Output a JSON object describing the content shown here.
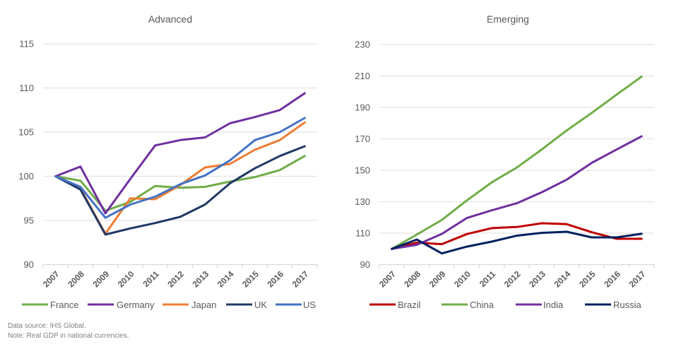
{
  "footnotes": {
    "source": "Data source: IHS Global.",
    "note": "Note: Real GDP in national currencies."
  },
  "chart_data": [
    {
      "type": "line",
      "title": "Advanced",
      "xlabel": "",
      "ylabel": "",
      "categories": [
        "2007",
        "2008",
        "2009",
        "2010",
        "2011",
        "2012",
        "2013",
        "2014",
        "2015",
        "2016",
        "2017"
      ],
      "ylim": [
        90,
        115
      ],
      "yticks": [
        90,
        95,
        100,
        105,
        110,
        115
      ],
      "grid": true,
      "legend": "bottom",
      "series": [
        {
          "name": "France",
          "color": "#70AD47",
          "values": [
            100,
            99.5,
            96.1,
            97.1,
            98.9,
            98.7,
            98.8,
            99.4,
            99.9,
            100.7,
            102.3
          ]
        },
        {
          "name": "Germany",
          "color": "#7030A0",
          "values": [
            100,
            101.1,
            95.8,
            99.7,
            103.5,
            104.1,
            104.4,
            106.0,
            106.7,
            107.5,
            109.4
          ]
        },
        {
          "name": "Japan",
          "color": "#ED7D31",
          "values": [
            100,
            98.6,
            93.5,
            97.5,
            97.4,
            99.0,
            101.0,
            101.4,
            103.0,
            104.1,
            106.1
          ]
        },
        {
          "name": "UK",
          "color": "#1F3864",
          "values": [
            100,
            98.5,
            93.4,
            94.1,
            94.7,
            95.4,
            96.8,
            99.2,
            100.9,
            102.3,
            103.4
          ]
        },
        {
          "name": "US",
          "color": "#4472C4",
          "values": [
            100,
            98.8,
            95.3,
            96.8,
            97.7,
            99.1,
            100.1,
            101.8,
            104.1,
            105.0,
            106.6
          ]
        }
      ]
    },
    {
      "type": "line",
      "title": "Emerging",
      "xlabel": "",
      "ylabel": "",
      "categories": [
        "2007",
        "2008",
        "2009",
        "2010",
        "2011",
        "2012",
        "2013",
        "2014",
        "2015",
        "2016",
        "2017"
      ],
      "ylim": [
        90,
        230
      ],
      "yticks": [
        90,
        110,
        130,
        150,
        170,
        190,
        210,
        230
      ],
      "grid": true,
      "legend": "bottom",
      "series": [
        {
          "name": "Brazil",
          "color": "#C00000",
          "values": [
            100,
            104.0,
            103.0,
            109.4,
            113.2,
            113.9,
            116.3,
            115.7,
            110.6,
            106.4,
            106.4
          ]
        },
        {
          "name": "China",
          "color": "#70AD47",
          "values": [
            100,
            109.1,
            118.4,
            130.8,
            142.3,
            151.7,
            163.2,
            175.3,
            186.5,
            198.2,
            209.6
          ]
        },
        {
          "name": "India",
          "color": "#7030A0",
          "values": [
            100,
            102.6,
            109.5,
            119.6,
            124.5,
            129.0,
            136.0,
            144.0,
            154.7,
            163.2,
            171.6
          ]
        },
        {
          "name": "Russia",
          "color": "#002060",
          "values": [
            100,
            105.9,
            97.1,
            101.4,
            104.6,
            108.4,
            110.2,
            110.9,
            107.3,
            107.3,
            109.6
          ]
        }
      ]
    }
  ]
}
